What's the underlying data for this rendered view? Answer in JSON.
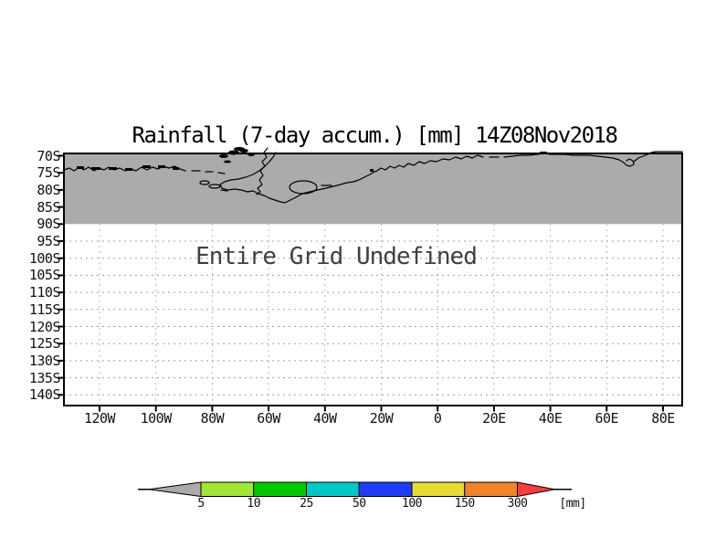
{
  "title": "Rainfall (7-day accum.) [mm] 14Z08Nov2018",
  "chart_data": {
    "type": "map",
    "title": "Rainfall (7-day accum.) [mm] 14Z08Nov2018",
    "variable": "Rainfall (7-day accum.)",
    "unit": "mm",
    "timestamp": "14Z08Nov2018",
    "annotation": "Entire Grid Undefined",
    "x_ticks": [
      "120W",
      "100W",
      "80W",
      "60W",
      "40W",
      "20W",
      "0",
      "20E",
      "40E",
      "60E",
      "80E"
    ],
    "y_ticks": [
      "70S",
      "75S",
      "80S",
      "85S",
      "90S",
      "95S",
      "100S",
      "105S",
      "110S",
      "115S",
      "120S",
      "125S",
      "130S",
      "135S",
      "140S"
    ],
    "grid_style": "dotted",
    "grid_color": "#9f9f9f",
    "shaded_band": {
      "color": "#ababab",
      "extent_y": [
        "70S",
        "90S"
      ],
      "content": "Antarctic coastline outline"
    },
    "colorbar": {
      "levels": [
        5,
        10,
        25,
        50,
        100,
        150,
        300
      ],
      "unit_label": "[mm]",
      "segment_colors": [
        "#a0e632",
        "#00c800",
        "#00c8c8",
        "#1e3cff",
        "#e6dc32",
        "#f08228"
      ],
      "below_min_color": "#ababab",
      "above_max_color": "#fa3c3c",
      "outline_color": "#000000"
    }
  }
}
